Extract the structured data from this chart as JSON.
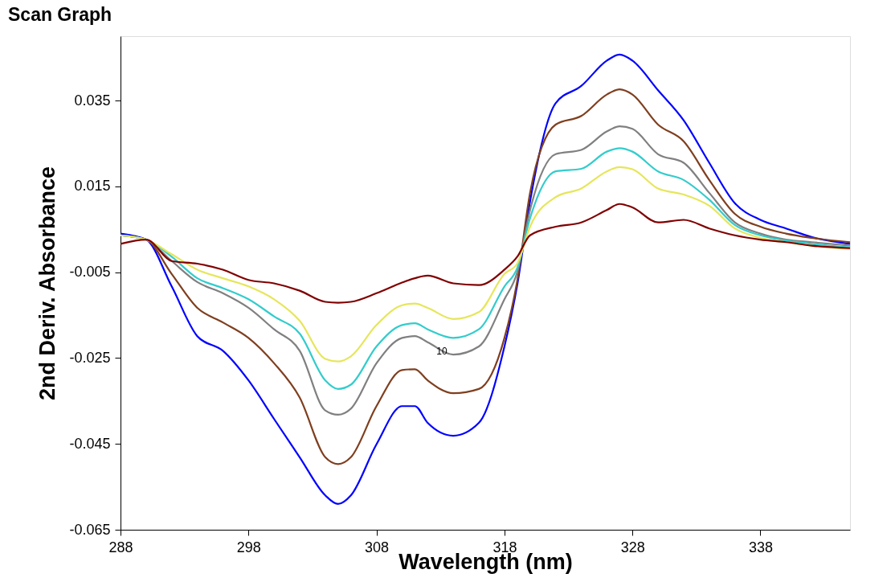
{
  "chart_data": {
    "type": "line",
    "title": "Scan Graph",
    "xlabel": "Wavelength (nm)",
    "ylabel": "2nd Deriv. Absorbance",
    "x": [
      288,
      290,
      292,
      294,
      296,
      298,
      300,
      302,
      304,
      305,
      306,
      308,
      310,
      311,
      312,
      314,
      316,
      318,
      319,
      320,
      322,
      324,
      326,
      327,
      328,
      330,
      332,
      334,
      336,
      338,
      340,
      342,
      345
    ],
    "xlim": [
      288,
      345
    ],
    "xticks": [
      288,
      298,
      308,
      318,
      328,
      338
    ],
    "ylim": [
      -0.065,
      0.05
    ],
    "yticks": [
      -0.065,
      -0.045,
      -0.025,
      -0.005,
      0.015,
      0.035
    ],
    "grid": false,
    "legend": false,
    "annotations": [
      "10"
    ],
    "series": [
      {
        "color": "#0000ff",
        "values": [
          0.004,
          0.0026,
          -0.0083,
          -0.0199,
          -0.0233,
          -0.0302,
          -0.0392,
          -0.0481,
          -0.057,
          -0.059,
          -0.057,
          -0.0451,
          -0.0362,
          -0.0362,
          -0.0401,
          -0.0431,
          -0.0401,
          -0.0223,
          -0.008,
          0.0115,
          0.0344,
          0.0384,
          0.0443,
          0.0457,
          0.0443,
          0.0374,
          0.0304,
          0.0205,
          0.0111,
          0.0072,
          0.0052,
          0.0032,
          0.0016
        ]
      },
      {
        "color": "#7f3f1f",
        "values": [
          0.0036,
          0.0026,
          -0.0054,
          -0.0133,
          -0.0167,
          -0.0203,
          -0.0262,
          -0.0342,
          -0.0481,
          -0.0497,
          -0.0481,
          -0.0362,
          -0.0278,
          -0.0276,
          -0.0302,
          -0.0332,
          -0.0322,
          -0.0203,
          -0.007,
          0.0135,
          0.0294,
          0.0314,
          0.0364,
          0.0376,
          0.0364,
          0.0294,
          0.0255,
          0.0165,
          0.0086,
          0.0056,
          0.004,
          0.003,
          0.002
        ]
      },
      {
        "color": "#808080",
        "values": [
          0.0036,
          0.0026,
          -0.0024,
          -0.0073,
          -0.0099,
          -0.0133,
          -0.0183,
          -0.0233,
          -0.0372,
          -0.0382,
          -0.0368,
          -0.0262,
          -0.0203,
          -0.0199,
          -0.0213,
          -0.0242,
          -0.0223,
          -0.0113,
          -0.005,
          0.0095,
          0.0225,
          0.0235,
          0.0278,
          0.029,
          0.0284,
          0.0225,
          0.0205,
          0.0135,
          0.0066,
          0.004,
          0.0026,
          0.002,
          0.0012
        ]
      },
      {
        "color": "#33cccc",
        "values": [
          0.0036,
          0.0026,
          -0.0014,
          -0.0064,
          -0.0087,
          -0.0113,
          -0.0153,
          -0.0193,
          -0.0302,
          -0.0322,
          -0.0312,
          -0.0223,
          -0.0173,
          -0.0169,
          -0.0183,
          -0.0203,
          -0.0183,
          -0.0083,
          -0.004,
          0.0076,
          0.0185,
          0.0191,
          0.0231,
          0.0239,
          0.0231,
          0.0185,
          0.0165,
          0.0119,
          0.006,
          0.0036,
          0.0024,
          0.0016,
          0.0008
        ]
      },
      {
        "color": "#e6e65c",
        "values": [
          0.0036,
          0.0026,
          -0.0008,
          -0.0044,
          -0.0064,
          -0.0083,
          -0.0113,
          -0.0163,
          -0.0252,
          -0.0258,
          -0.0246,
          -0.0173,
          -0.0127,
          -0.0123,
          -0.0133,
          -0.0159,
          -0.0143,
          -0.0054,
          -0.003,
          0.0056,
          0.0125,
          0.0145,
          0.0185,
          0.0195,
          0.019,
          0.0145,
          0.0131,
          0.0105,
          0.0052,
          0.003,
          0.002,
          0.0012,
          0.0004
        ]
      },
      {
        "color": "#800000",
        "values": [
          0.0016,
          0.0026,
          -0.0024,
          -0.003,
          -0.0044,
          -0.0068,
          -0.0076,
          -0.0093,
          -0.0119,
          -0.0121,
          -0.0119,
          -0.0099,
          -0.0074,
          -0.0064,
          -0.0058,
          -0.0076,
          -0.008,
          -0.0044,
          -0.0014,
          0.0036,
          0.0056,
          0.0066,
          0.0095,
          0.0109,
          0.0101,
          0.0066,
          0.0072,
          0.0052,
          0.0036,
          0.0026,
          0.002,
          0.0012,
          0.0006
        ]
      }
    ]
  }
}
